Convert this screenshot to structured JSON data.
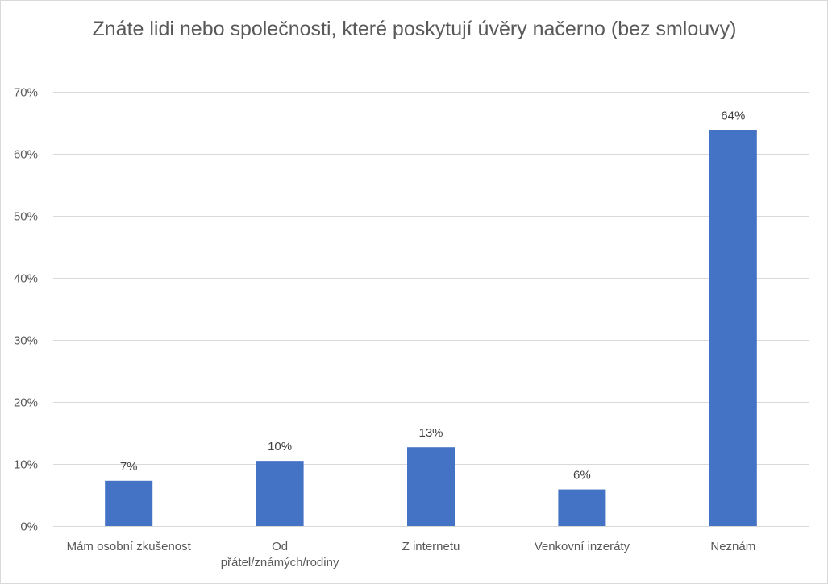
{
  "chart_data": {
    "type": "bar",
    "title": "Znáte lidi nebo společnosti, které poskytují úvěry načerno (bez smlouvy)",
    "xlabel": "",
    "ylabel": "",
    "ylim": [
      0,
      70
    ],
    "y_ticks": [
      0,
      10,
      20,
      30,
      40,
      50,
      60,
      70
    ],
    "y_tick_labels": [
      "0%",
      "10%",
      "20%",
      "30%",
      "40%",
      "50%",
      "60%",
      "70%"
    ],
    "grid": true,
    "legend": "none",
    "bar_color": "#4472C4",
    "categories": [
      [
        "Mám osobní zkušenost"
      ],
      [
        "Od",
        "přátel/známých/rodiny"
      ],
      [
        "Z internetu"
      ],
      [
        "Venkovní inzeráty"
      ],
      [
        "Neznám"
      ]
    ],
    "values": [
      7.3,
      10.5,
      12.7,
      5.9,
      63.8
    ],
    "data_labels": [
      "7%",
      "10%",
      "13%",
      "6%",
      "64%"
    ]
  }
}
